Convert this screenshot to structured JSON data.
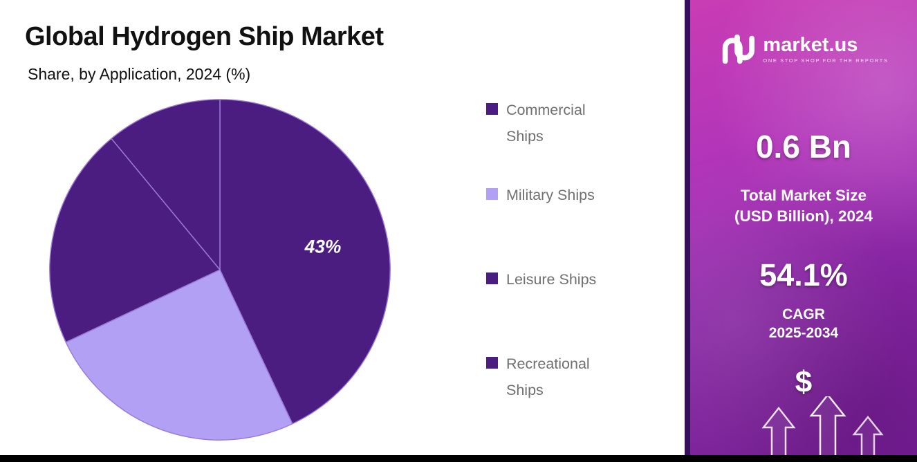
{
  "header": {
    "title": "Global Hydrogen Ship Market",
    "subtitle": "Share, by Application, 2024 (%)"
  },
  "chart_data": {
    "type": "pie",
    "title": "Global Hydrogen Ship Market",
    "subtitle": "Share, by Application, 2024 (%)",
    "categories": [
      "Commercial Ships",
      "Military Ships",
      "Leisure Ships",
      "Recreational Ships"
    ],
    "values": [
      43,
      25,
      21,
      11
    ],
    "colors": [
      "#4b1d80",
      "#b2a0f5",
      "#4b1d80",
      "#4b1d80"
    ],
    "data_labels": [
      "43%",
      "",
      "",
      ""
    ],
    "start_angle_deg": 0,
    "direction": "clockwise",
    "legend_position": "right",
    "slice_border_color": "#9b7ad6"
  },
  "legend": {
    "items": [
      {
        "label": "Commercial Ships",
        "color": "#4b1d80"
      },
      {
        "label": "Military Ships",
        "color": "#b2a0f5"
      },
      {
        "label": "Leisure Ships",
        "color": "#4b1d80"
      },
      {
        "label": "Recreational Ships",
        "color": "#4b1d80"
      }
    ]
  },
  "sidebar": {
    "logo": {
      "brand": "market.us",
      "tagline": "ONE STOP SHOP FOR THE REPORTS"
    },
    "market_size_value": "0.6 Bn",
    "market_size_label_line1": "Total Market Size",
    "market_size_label_line2": "(USD Billion), 2024",
    "cagr_value": "54.1%",
    "cagr_label_line1": "CAGR",
    "cagr_label_line2": "2025-2034",
    "dollar_symbol": "$",
    "colors": {
      "gradient_top": "#c93cb4",
      "gradient_bottom": "#7d1f9f",
      "border": "#360e5a"
    }
  }
}
